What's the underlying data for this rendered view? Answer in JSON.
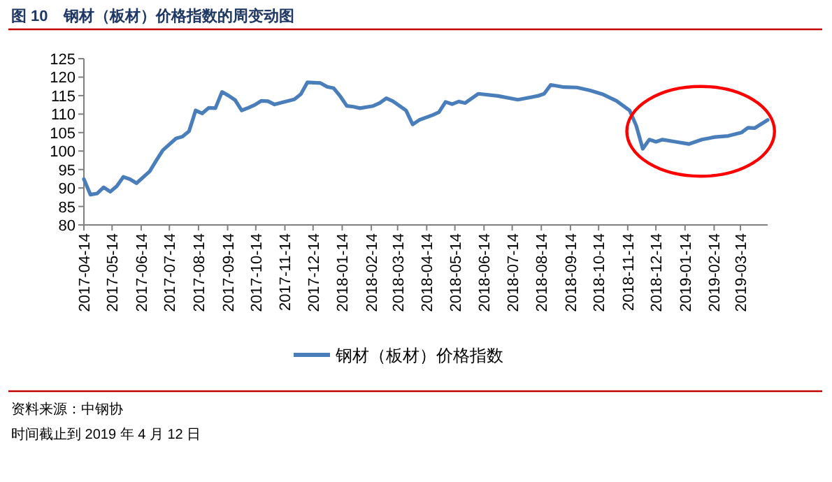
{
  "chart_data": {
    "type": "line",
    "title": "图 10　钢材（板材）价格指数的周变动图",
    "annotations": [
      "资料来源：中钢协",
      "时间截止到 2019 年 4 月 12 日"
    ],
    "legend": "bottom",
    "grid": false,
    "marker": "none",
    "line_style": "solid",
    "xlim": [
      "2017-04-14",
      "2019-04-12"
    ],
    "xticks": [
      "2017-04-14",
      "2017-05-14",
      "2017-06-14",
      "2017-07-14",
      "2017-08-14",
      "2017-09-14",
      "2017-10-14",
      "2017-11-14",
      "2017-12-14",
      "2018-01-14",
      "2018-02-14",
      "2018-03-14",
      "2018-04-14",
      "2018-05-14",
      "2018-06-14",
      "2018-07-14",
      "2018-08-14",
      "2018-09-14",
      "2018-10-14",
      "2018-11-14",
      "2018-12-14",
      "2019-01-14",
      "2019-02-14",
      "2019-03-14"
    ],
    "ylim": [
      80,
      125
    ],
    "yticks": [
      80,
      85,
      90,
      95,
      100,
      105,
      110,
      115,
      120,
      125
    ],
    "series": [
      {
        "name": "钢材（板材）价格指数",
        "color": "#4a7ebb",
        "x": [
          "2017-04-14",
          "2017-04-21",
          "2017-04-28",
          "2017-05-05",
          "2017-05-12",
          "2017-05-19",
          "2017-05-26",
          "2017-06-02",
          "2017-06-09",
          "2017-06-23",
          "2017-06-30",
          "2017-07-07",
          "2017-07-21",
          "2017-07-28",
          "2017-08-04",
          "2017-08-11",
          "2017-08-18",
          "2017-08-25",
          "2017-09-01",
          "2017-09-08",
          "2017-09-15",
          "2017-09-22",
          "2017-09-29",
          "2017-10-06",
          "2017-10-13",
          "2017-10-20",
          "2017-10-27",
          "2017-11-03",
          "2017-11-10",
          "2017-11-24",
          "2017-12-01",
          "2017-12-08",
          "2017-12-22",
          "2017-12-29",
          "2018-01-05",
          "2018-01-12",
          "2018-01-19",
          "2018-01-26",
          "2018-02-02",
          "2018-02-16",
          "2018-02-23",
          "2018-03-02",
          "2018-03-09",
          "2018-03-23",
          "2018-03-30",
          "2018-04-06",
          "2018-04-20",
          "2018-04-27",
          "2018-05-04",
          "2018-05-11",
          "2018-05-18",
          "2018-05-25",
          "2018-06-08",
          "2018-06-29",
          "2018-07-20",
          "2018-08-10",
          "2018-08-17",
          "2018-08-24",
          "2018-09-07",
          "2018-09-21",
          "2018-10-05",
          "2018-10-19",
          "2018-11-02",
          "2018-11-16",
          "2018-11-23",
          "2018-11-30",
          "2018-12-07",
          "2018-12-14",
          "2018-12-21",
          "2019-01-04",
          "2019-01-18",
          "2019-02-01",
          "2019-02-15",
          "2019-03-01",
          "2019-03-15",
          "2019-03-22",
          "2019-03-29",
          "2019-04-12"
        ],
        "values": [
          92.4,
          88.2,
          88.5,
          90.2,
          89.0,
          90.5,
          93.0,
          92.4,
          91.3,
          94.5,
          97.4,
          100.2,
          103.4,
          103.9,
          105.4,
          111.0,
          110.2,
          111.7,
          111.6,
          116.0,
          115.0,
          113.8,
          111.0,
          111.7,
          112.5,
          113.6,
          113.5,
          112.6,
          113.1,
          114.0,
          115.4,
          118.6,
          118.4,
          117.4,
          117.0,
          114.8,
          112.2,
          112.0,
          111.6,
          112.2,
          113.0,
          114.3,
          113.5,
          111.0,
          107.2,
          108.4,
          109.7,
          110.5,
          113.3,
          112.7,
          113.4,
          113.0,
          115.5,
          114.9,
          113.9,
          114.9,
          115.5,
          117.9,
          117.3,
          117.2,
          116.4,
          115.3,
          113.6,
          111.0,
          106.9,
          100.6,
          103.1,
          102.5,
          103.1,
          102.5,
          101.9,
          103.1,
          103.8,
          104.1,
          105.0,
          106.3,
          106.2,
          108.4
        ]
      }
    ]
  }
}
